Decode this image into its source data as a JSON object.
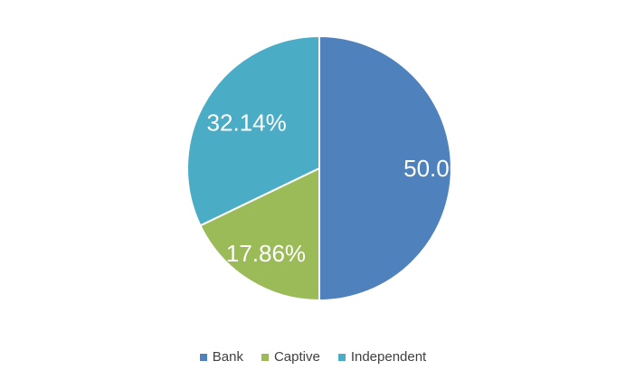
{
  "chart_data": {
    "type": "pie",
    "title": "",
    "categories": [
      "Bank",
      "Captive",
      "Independent"
    ],
    "values": [
      50.0,
      17.86,
      32.14
    ],
    "data_labels": [
      "50.00%",
      "17.86%",
      "32.14%"
    ],
    "colors": [
      "#4f81bd",
      "#9bbb59",
      "#4bacc6"
    ],
    "start_angle": "12 o'clock",
    "direction": "clockwise",
    "legend_position": "bottom"
  },
  "legend": {
    "items": [
      {
        "label": "Bank",
        "color": "#4f81bd"
      },
      {
        "label": "Captive",
        "color": "#9bbb59"
      },
      {
        "label": "Independent",
        "color": "#4bacc6"
      }
    ]
  }
}
